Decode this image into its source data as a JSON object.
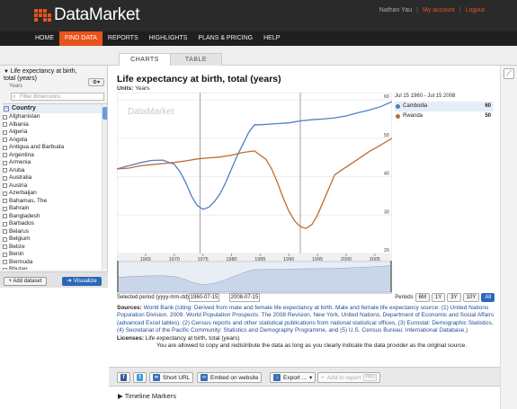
{
  "header": {
    "brand": "DataMarket",
    "user": "Nathan Yau",
    "my_account": "My account",
    "logout": "Logout",
    "separator": "|"
  },
  "nav": [
    "HOME",
    "FIND DATA",
    "REPORTS",
    "HIGHLIGHTS",
    "PLANS & PRICING",
    "HELP"
  ],
  "nav_active": "FIND DATA",
  "tabs": {
    "charts": "CHARTS",
    "table": "TABLE"
  },
  "sidebar": {
    "dataset_title": "Life expectancy at birth, total (years)",
    "dataset_units": "Years",
    "filter_placeholder": "Filter dimensions",
    "dimension": "Country",
    "countries": [
      "Afghanistan",
      "Albania",
      "Algeria",
      "Angola",
      "Antigua and Barbuda",
      "Argentina",
      "Armenia",
      "Aruba",
      "Australia",
      "Austria",
      "Azerbaijan",
      "Bahamas, The",
      "Bahrain",
      "Bangladesh",
      "Barbados",
      "Belarus",
      "Belgium",
      "Belize",
      "Benin",
      "Bermuda",
      "Bhutan"
    ],
    "add_dataset": "Add dataset",
    "visualize": "Visualize"
  },
  "chart": {
    "title": "Life expectancy at birth, total (years)",
    "units_label": "Units:",
    "units_value": "Years",
    "watermark": "DataMarket",
    "range_label": "Jul 15 1960 - Jul 15 2008",
    "legend": [
      {
        "name": "Cambodia",
        "value": "60",
        "color": "#4e7fc0"
      },
      {
        "name": "Rwanda",
        "value": "50",
        "color": "#c06a30"
      }
    ]
  },
  "chart_data": {
    "type": "line",
    "x_ticks": [
      "1965",
      "1970",
      "1975",
      "1980",
      "1985",
      "1990",
      "1995",
      "2000",
      "2005"
    ],
    "y_ticks": [
      "20",
      "30",
      "40",
      "50",
      "60"
    ],
    "xlim": [
      1960,
      2008
    ],
    "ylim": [
      20,
      60
    ],
    "series": [
      {
        "name": "Cambodia",
        "x": [
          1960,
          1962,
          1964,
          1966,
          1968,
          1970,
          1971,
          1972,
          1973,
          1974,
          1975,
          1976,
          1977,
          1978,
          1979,
          1980,
          1981,
          1982,
          1983,
          1984,
          1985,
          1986,
          1988,
          1990,
          1992,
          1994,
          1996,
          1998,
          2000,
          2002,
          2004,
          2006,
          2008
        ],
        "y": [
          42,
          42.8,
          43.6,
          44.2,
          44.3,
          43.2,
          41.3,
          38.5,
          35,
          32.5,
          31.5,
          32,
          33.5,
          35.5,
          38.5,
          42,
          45.5,
          48.5,
          51.5,
          53.5,
          53.5,
          53.6,
          53.8,
          54,
          54.5,
          54.8,
          55,
          55.3,
          55.8,
          56.6,
          57.3,
          58.2,
          59.5
        ]
      },
      {
        "name": "Rwanda",
        "x": [
          1960,
          1962,
          1964,
          1966,
          1968,
          1970,
          1972,
          1974,
          1976,
          1978,
          1980,
          1982,
          1984,
          1986,
          1987,
          1988,
          1989,
          1990,
          1991,
          1992,
          1993,
          1994,
          1995,
          1996,
          1997,
          1998,
          2000,
          2002,
          2004,
          2006,
          2008
        ],
        "y": [
          42,
          42.2,
          42.8,
          43.1,
          43.4,
          43.7,
          44.1,
          44.6,
          44.9,
          45.1,
          45.6,
          46.3,
          46.7,
          44.5,
          42,
          38.5,
          34.5,
          31,
          28.5,
          27,
          26.5,
          27.5,
          30,
          33.5,
          37,
          40.5,
          42.5,
          44.5,
          46.5,
          48.2,
          50
        ]
      }
    ],
    "grid": true,
    "markers": [
      1974.5,
      1992
    ]
  },
  "period": {
    "label": "Selected period (yyyy-mm-dd):",
    "start": "1960-07-15",
    "end": "2008-07-15",
    "periods_label": "Periods",
    "options": [
      "6M",
      "1Y",
      "3Y",
      "10Y",
      "All"
    ],
    "active": "All"
  },
  "meta": {
    "sources_label": "Sources:",
    "sources_text": "World Bank (citing: Derived from male and female life expectancy at birth. Male and female life expectancy source: (1) United Nations Population Division. 2009. World Population Prospects: The 2008 Revision. New York, United Nations, Department of Economic and Social Affairs (advanced Excel tables). (2) Census reports and other statistical publications from national statistical offices, (3) Eurostat: Demographic Statistics, (4) Secretariat of the Pacific Community: Statistics and Demography Programme, and (5) U.S. Census Bureau: International Database.)",
    "licenses_label": "Licenses:",
    "licenses_title": "Life expectancy at birth, total (years)",
    "licenses_text": "You are allowed to copy and redistribute the data as long as you clearly indicate the data provider as the original source."
  },
  "toolbar": {
    "short_url": "Short URL",
    "embed": "Embed on website",
    "export": "Export ...",
    "add_report": "Add to report",
    "pro_badge": "PRO"
  },
  "timeline": "Timeline Markers"
}
